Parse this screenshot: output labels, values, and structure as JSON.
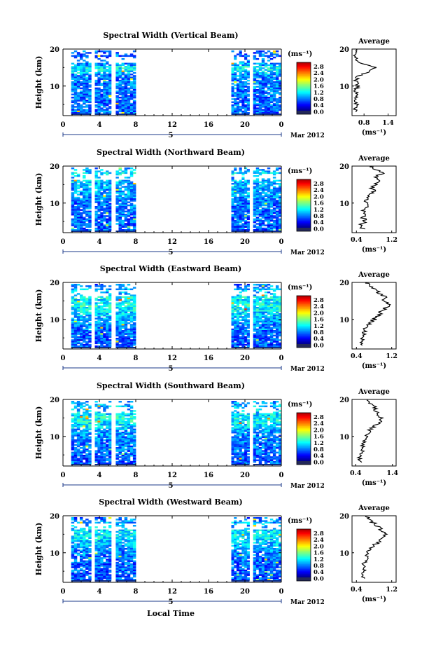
{
  "common": {
    "ylabel": "Height (km)",
    "xticks": [
      "0",
      "4",
      "8",
      "12",
      "16",
      "20",
      "0"
    ],
    "date_marker": "5",
    "date_label": "Mar 2012",
    "unit_label": "(ms⁻¹)",
    "colorbar_ticks": [
      "2.8",
      "2.4",
      "2.0",
      "1.6",
      "1.2",
      "0.8",
      "0.4",
      "0.0"
    ],
    "yticks": [
      "20",
      "10"
    ],
    "avg_title": "Average",
    "avg_xlabel": "(ms⁻¹)",
    "xlabel": "Local Time"
  },
  "chart_data": [
    {
      "type": "heatmap",
      "title": "Spectral Width (Vertical Beam)",
      "data_blocks_hours": [
        [
          0.9,
          3.1
        ],
        [
          3.5,
          5.3
        ],
        [
          5.8,
          8.0
        ],
        [
          18.5,
          20.5
        ],
        [
          20.9,
          24.0
        ]
      ],
      "xlim": [
        0,
        24
      ],
      "ylim": [
        2,
        20
      ],
      "clim": [
        0.0,
        3.0
      ],
      "average_profile": {
        "xticks": [
          "0.8",
          "1.4"
        ],
        "xlim": [
          0.5,
          1.6
        ],
        "height_km": [
          3,
          4,
          5,
          6,
          7,
          8,
          9,
          10,
          11,
          12,
          13,
          14,
          15,
          16,
          17,
          18,
          19,
          20
        ],
        "values": [
          0.6,
          0.55,
          0.6,
          0.6,
          0.58,
          0.62,
          0.6,
          0.65,
          0.6,
          0.62,
          0.7,
          0.95,
          1.05,
          0.75,
          0.65,
          0.6,
          0.55,
          0.6
        ]
      }
    },
    {
      "type": "heatmap",
      "title": "Spectral Width (Northward Beam)",
      "data_blocks_hours": [
        [
          0.9,
          3.1
        ],
        [
          3.5,
          5.3
        ],
        [
          5.8,
          8.0
        ],
        [
          18.5,
          20.5
        ],
        [
          20.9,
          24.0
        ]
      ],
      "xlim": [
        0,
        24
      ],
      "ylim": [
        2,
        20
      ],
      "clim": [
        0.0,
        3.0
      ],
      "average_profile": {
        "xticks": [
          "0.4",
          "1.2"
        ],
        "xlim": [
          0.3,
          1.3
        ],
        "height_km": [
          3,
          4,
          5,
          6,
          7,
          8,
          9,
          10,
          11,
          12,
          13,
          14,
          15,
          16,
          17,
          18,
          19,
          20
        ],
        "values": [
          0.55,
          0.5,
          0.6,
          0.55,
          0.6,
          0.58,
          0.62,
          0.6,
          0.65,
          0.7,
          0.8,
          0.75,
          0.85,
          0.9,
          0.8,
          1.0,
          0.85,
          0.7
        ]
      }
    },
    {
      "type": "heatmap",
      "title": "Spectral Width (Eastward Beam)",
      "data_blocks_hours": [
        [
          0.9,
          3.1
        ],
        [
          3.5,
          5.3
        ],
        [
          5.8,
          8.0
        ],
        [
          18.5,
          20.5
        ],
        [
          20.9,
          24.0
        ]
      ],
      "xlim": [
        0,
        24
      ],
      "ylim": [
        2,
        20
      ],
      "clim": [
        0.0,
        3.0
      ],
      "average_profile": {
        "xticks": [
          "0.4",
          "1.2"
        ],
        "xlim": [
          0.3,
          1.3
        ],
        "height_km": [
          3,
          4,
          5,
          6,
          7,
          8,
          9,
          10,
          11,
          12,
          13,
          14,
          15,
          16,
          17,
          18,
          19,
          20
        ],
        "values": [
          0.5,
          0.55,
          0.5,
          0.6,
          0.58,
          0.65,
          0.7,
          0.8,
          0.9,
          0.95,
          1.05,
          1.15,
          1.0,
          1.1,
          0.9,
          0.85,
          0.7,
          0.6
        ]
      }
    },
    {
      "type": "heatmap",
      "title": "Spectral Width (Southward Beam)",
      "data_blocks_hours": [
        [
          0.9,
          3.1
        ],
        [
          3.5,
          5.3
        ],
        [
          5.8,
          8.0
        ],
        [
          18.5,
          20.5
        ],
        [
          20.9,
          24.0
        ]
      ],
      "xlim": [
        0,
        24
      ],
      "ylim": [
        2,
        20
      ],
      "clim": [
        0.0,
        3.0
      ],
      "average_profile": {
        "xticks": [
          "0.4",
          "1.4"
        ],
        "xlim": [
          0.3,
          1.5
        ],
        "height_km": [
          3,
          4,
          5,
          6,
          7,
          8,
          9,
          10,
          11,
          12,
          13,
          14,
          15,
          16,
          17,
          18,
          19,
          20
        ],
        "values": [
          0.55,
          0.5,
          0.55,
          0.6,
          0.58,
          0.62,
          0.65,
          0.7,
          0.75,
          0.8,
          0.95,
          1.05,
          1.1,
          1.0,
          0.95,
          0.9,
          0.8,
          0.7
        ]
      }
    },
    {
      "type": "heatmap",
      "title": "Spectral Width (Westward Beam)",
      "data_blocks_hours": [
        [
          0.9,
          3.1
        ],
        [
          3.5,
          5.3
        ],
        [
          5.8,
          8.0
        ],
        [
          18.5,
          20.5
        ],
        [
          20.9,
          24.0
        ]
      ],
      "xlim": [
        0,
        24
      ],
      "ylim": [
        2,
        20
      ],
      "clim": [
        0.0,
        3.0
      ],
      "average_profile": {
        "xticks": [
          "0.4",
          "1.2"
        ],
        "xlim": [
          0.3,
          1.3
        ],
        "height_km": [
          3,
          4,
          5,
          6,
          7,
          8,
          9,
          10,
          11,
          12,
          13,
          14,
          15,
          16,
          17,
          18,
          19,
          20
        ],
        "values": [
          0.55,
          0.5,
          0.55,
          0.6,
          0.55,
          0.6,
          0.62,
          0.68,
          0.7,
          0.8,
          0.9,
          1.0,
          1.05,
          0.95,
          0.9,
          0.8,
          0.7,
          0.6
        ]
      }
    }
  ]
}
